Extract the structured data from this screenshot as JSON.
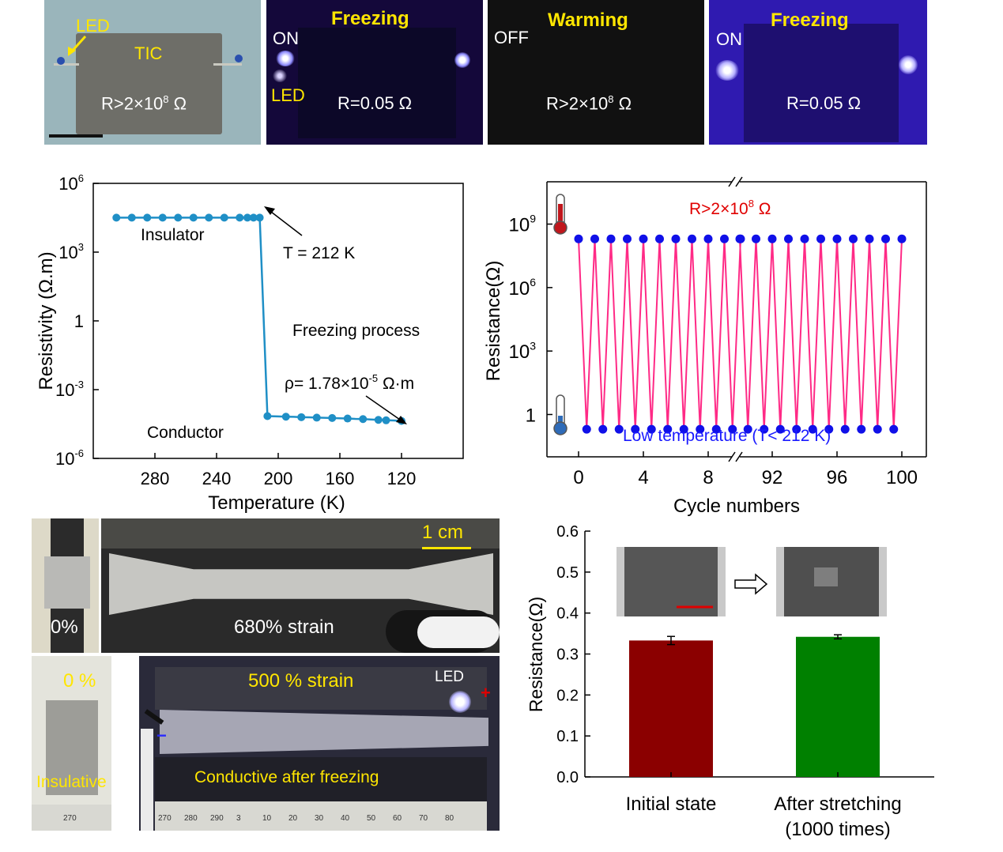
{
  "top_panels": [
    {
      "labels": {
        "led": "LED",
        "tic": "TIC",
        "r": "R>2×10",
        "r_exp": "8",
        "r_unit": " Ω"
      }
    },
    {
      "title": "Freezing",
      "state": "ON",
      "led": "LED",
      "r": "R=0.05 Ω"
    },
    {
      "title": "Warming",
      "state": "OFF",
      "r": "R>2×10",
      "r_exp": "8",
      "r_unit": " Ω"
    },
    {
      "title": "Freezing",
      "state": "ON",
      "r": "R=0.05 Ω"
    }
  ],
  "strain_photos": {
    "scale": "1 cm",
    "left_top": "0%",
    "right_top": "680% strain",
    "left_bottom_top": "0 %",
    "left_bottom_bottom": "Insulative",
    "right_bottom_top": "500 % strain",
    "right_bottom_led": "LED",
    "right_bottom_bottom": "Conductive after freezing",
    "plus": "+",
    "minus": "−",
    "ruler_ticks_a": [
      "270"
    ],
    "ruler_ticks_b": [
      "270",
      "280",
      "290",
      "3",
      "10",
      "20",
      "30",
      "40",
      "50",
      "60",
      "70",
      "80"
    ]
  },
  "chart_data": [
    {
      "type": "line",
      "xlabel": "Temperature (K)",
      "ylabel": "Resistivity (Ω.m)",
      "xlim": [
        320,
        80
      ],
      "x_ticks": [
        280,
        240,
        200,
        160,
        120
      ],
      "y_scale": "log",
      "ylim": [
        1e-06,
        1000000.0
      ],
      "y_ticks": [
        {
          "base": "10",
          "exp": "6"
        },
        {
          "base": "10",
          "exp": "3"
        },
        {
          "base": "1",
          "exp": ""
        },
        {
          "base": "10",
          "exp": "-3"
        },
        {
          "base": "10",
          "exp": "-6"
        }
      ],
      "series": [
        {
          "x": [
            305,
            295,
            285,
            275,
            265,
            255,
            245,
            235,
            225,
            220,
            216,
            212,
            207,
            200,
            195,
            190,
            185,
            180,
            175,
            170,
            165,
            160,
            155,
            150,
            145,
            140,
            135,
            130,
            125,
            120
          ],
          "y": [
            32000.0,
            32000.0,
            32000.0,
            32000.0,
            32000.0,
            32000.0,
            32000.0,
            32000.0,
            32000.0,
            32000.0,
            32000.0,
            32000.0,
            7e-05,
            6.8e-05,
            6.6e-05,
            6.5e-05,
            6.3e-05,
            6.2e-05,
            6e-05,
            5.9e-05,
            5.8e-05,
            5.6e-05,
            5.5e-05,
            5.3e-05,
            5.2e-05,
            5e-05,
            4.8e-05,
            4.6e-05,
            4.5e-05,
            4.3e-05
          ],
          "markers": [
            true,
            true,
            true,
            true,
            true,
            true,
            true,
            true,
            true,
            true,
            true,
            true,
            true,
            false,
            true,
            false,
            true,
            false,
            true,
            false,
            true,
            false,
            true,
            false,
            true,
            false,
            true,
            true,
            false,
            true
          ]
        }
      ],
      "annotations": {
        "insulator": "Insulator",
        "transition": "T = 212 K",
        "process": "Freezing process",
        "rho_prefix": "ρ= 1.78×10",
        "rho_exp": "-5",
        "rho_unit": " Ω·m",
        "conductor": "Conductor"
      }
    },
    {
      "type": "line",
      "xlabel": "Cycle numbers",
      "ylabel": "Resistance(Ω)",
      "x_ticks": [
        "0",
        "4",
        "8",
        "92",
        "96",
        "100"
      ],
      "y_scale": "log",
      "y_ticks": [
        {
          "base": "10",
          "exp": "9"
        },
        {
          "base": "10",
          "exp": "6"
        },
        {
          "base": "10",
          "exp": "3"
        },
        {
          "base": "1",
          "exp": ""
        }
      ],
      "ylim": [
        0.01,
        100000000000.0
      ],
      "high_value": 200000000.0,
      "low_value": 0.2,
      "cycles_left": 10,
      "cycles_right": 10,
      "annotations": {
        "high_prefix": "R>2×10",
        "high_exp": "8",
        "high_unit": " Ω",
        "low": "Low temperature (T< 212 K)"
      }
    },
    {
      "type": "bar",
      "xlabel": "",
      "ylabel": "Resistance(Ω)",
      "ylim": [
        0.0,
        0.6
      ],
      "y_ticks": [
        "0.0",
        "0.1",
        "0.2",
        "0.3",
        "0.4",
        "0.5",
        "0.6"
      ],
      "categories": [
        [
          "Initial state"
        ],
        [
          "After stretching",
          "(1000 times)"
        ]
      ],
      "values": [
        0.333,
        0.342
      ],
      "errors": [
        0.01,
        0.005
      ],
      "colors": [
        "#8b0000",
        "#008000"
      ]
    }
  ]
}
